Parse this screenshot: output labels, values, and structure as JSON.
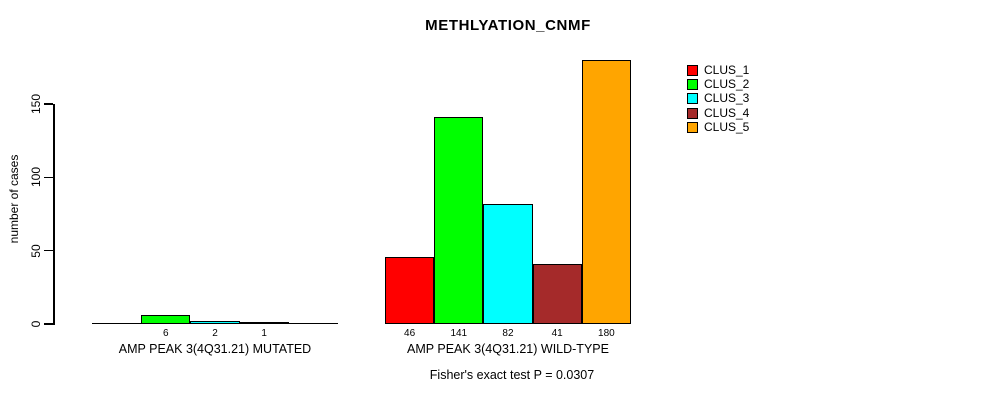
{
  "chart_data": {
    "type": "bar",
    "title": "METHLYATION_CNMF",
    "ylabel": "number of cases",
    "ylim": [
      0,
      185
    ],
    "yticks": [
      0,
      50,
      100,
      150
    ],
    "grid": false,
    "legend_position": "top-right",
    "categories": [
      "CLUS_1",
      "CLUS_2",
      "CLUS_3",
      "CLUS_4",
      "CLUS_5"
    ],
    "colors": [
      "#FF0000",
      "#00FF00",
      "#00FFFF",
      "#A52A2A",
      "#FFA500"
    ],
    "groups": [
      {
        "label": "AMP PEAK 3(4Q31.21) MUTATED",
        "values": [
          0,
          6,
          2,
          1,
          0
        ],
        "bar_labels": [
          "",
          "6",
          "2",
          "1",
          ""
        ]
      },
      {
        "label": "AMP PEAK 3(4Q31.21) WILD-TYPE",
        "values": [
          46,
          141,
          82,
          41,
          180
        ],
        "bar_labels": [
          "46",
          "141",
          "82",
          "41",
          "180"
        ]
      }
    ],
    "annotation": "Fisher's exact test P = 0.0307"
  }
}
